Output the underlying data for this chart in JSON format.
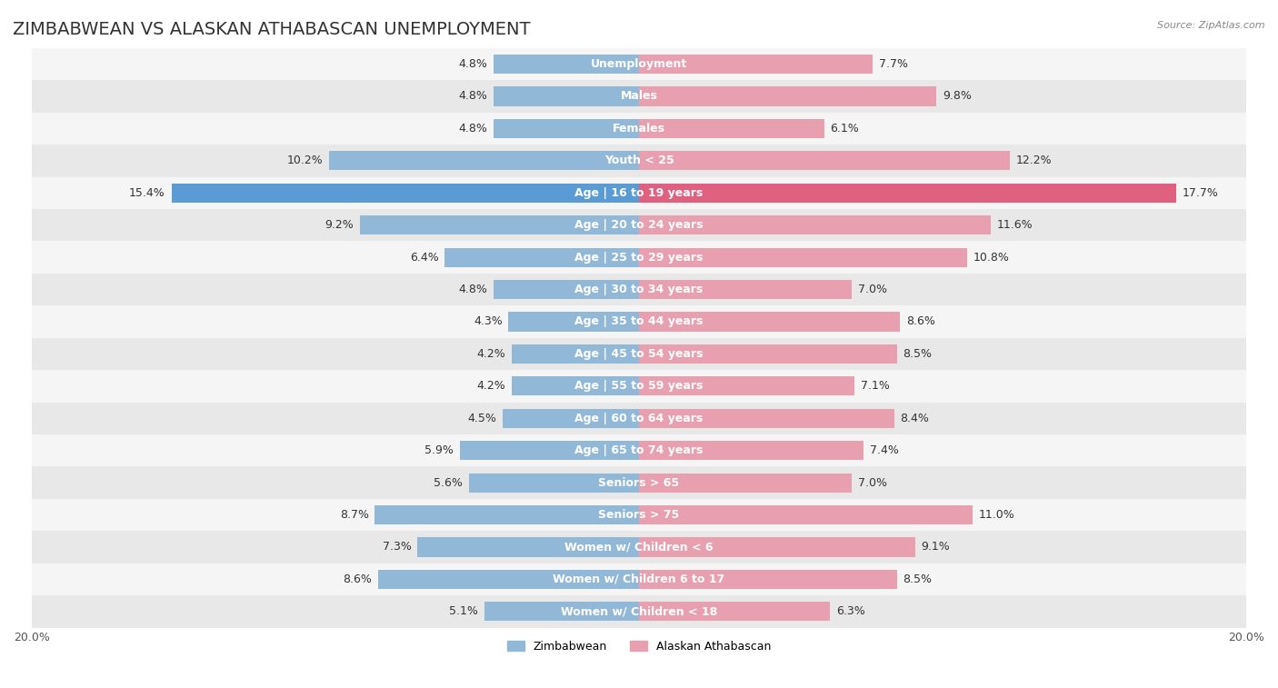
{
  "title": "ZIMBABWEAN VS ALASKAN ATHABASCAN UNEMPLOYMENT",
  "source": "Source: ZipAtlas.com",
  "categories": [
    "Unemployment",
    "Males",
    "Females",
    "Youth < 25",
    "Age | 16 to 19 years",
    "Age | 20 to 24 years",
    "Age | 25 to 29 years",
    "Age | 30 to 34 years",
    "Age | 35 to 44 years",
    "Age | 45 to 54 years",
    "Age | 55 to 59 years",
    "Age | 60 to 64 years",
    "Age | 65 to 74 years",
    "Seniors > 65",
    "Seniors > 75",
    "Women w/ Children < 6",
    "Women w/ Children 6 to 17",
    "Women w/ Children < 18"
  ],
  "zimbabwean": [
    4.8,
    4.8,
    4.8,
    10.2,
    15.4,
    9.2,
    6.4,
    4.8,
    4.3,
    4.2,
    4.2,
    4.5,
    5.9,
    5.6,
    8.7,
    7.3,
    8.6,
    5.1
  ],
  "alaskan": [
    7.7,
    9.8,
    6.1,
    12.2,
    17.7,
    11.6,
    10.8,
    7.0,
    8.6,
    8.5,
    7.1,
    8.4,
    7.4,
    7.0,
    11.0,
    9.1,
    8.5,
    6.3
  ],
  "zimbabwean_color": "#92b8d8",
  "alaskan_color": "#e8a0b0",
  "highlight_zimbabwean_color": "#5b9bd5",
  "highlight_alaskan_color": "#e06080",
  "row_colors": [
    "#f5f5f5",
    "#e8e8e8"
  ],
  "xlim": 20.0,
  "legend_zimbabwean": "Zimbabwean",
  "legend_alaskan": "Alaskan Athabascan",
  "bar_height": 0.6,
  "title_fontsize": 14,
  "label_fontsize": 9,
  "value_fontsize": 9
}
